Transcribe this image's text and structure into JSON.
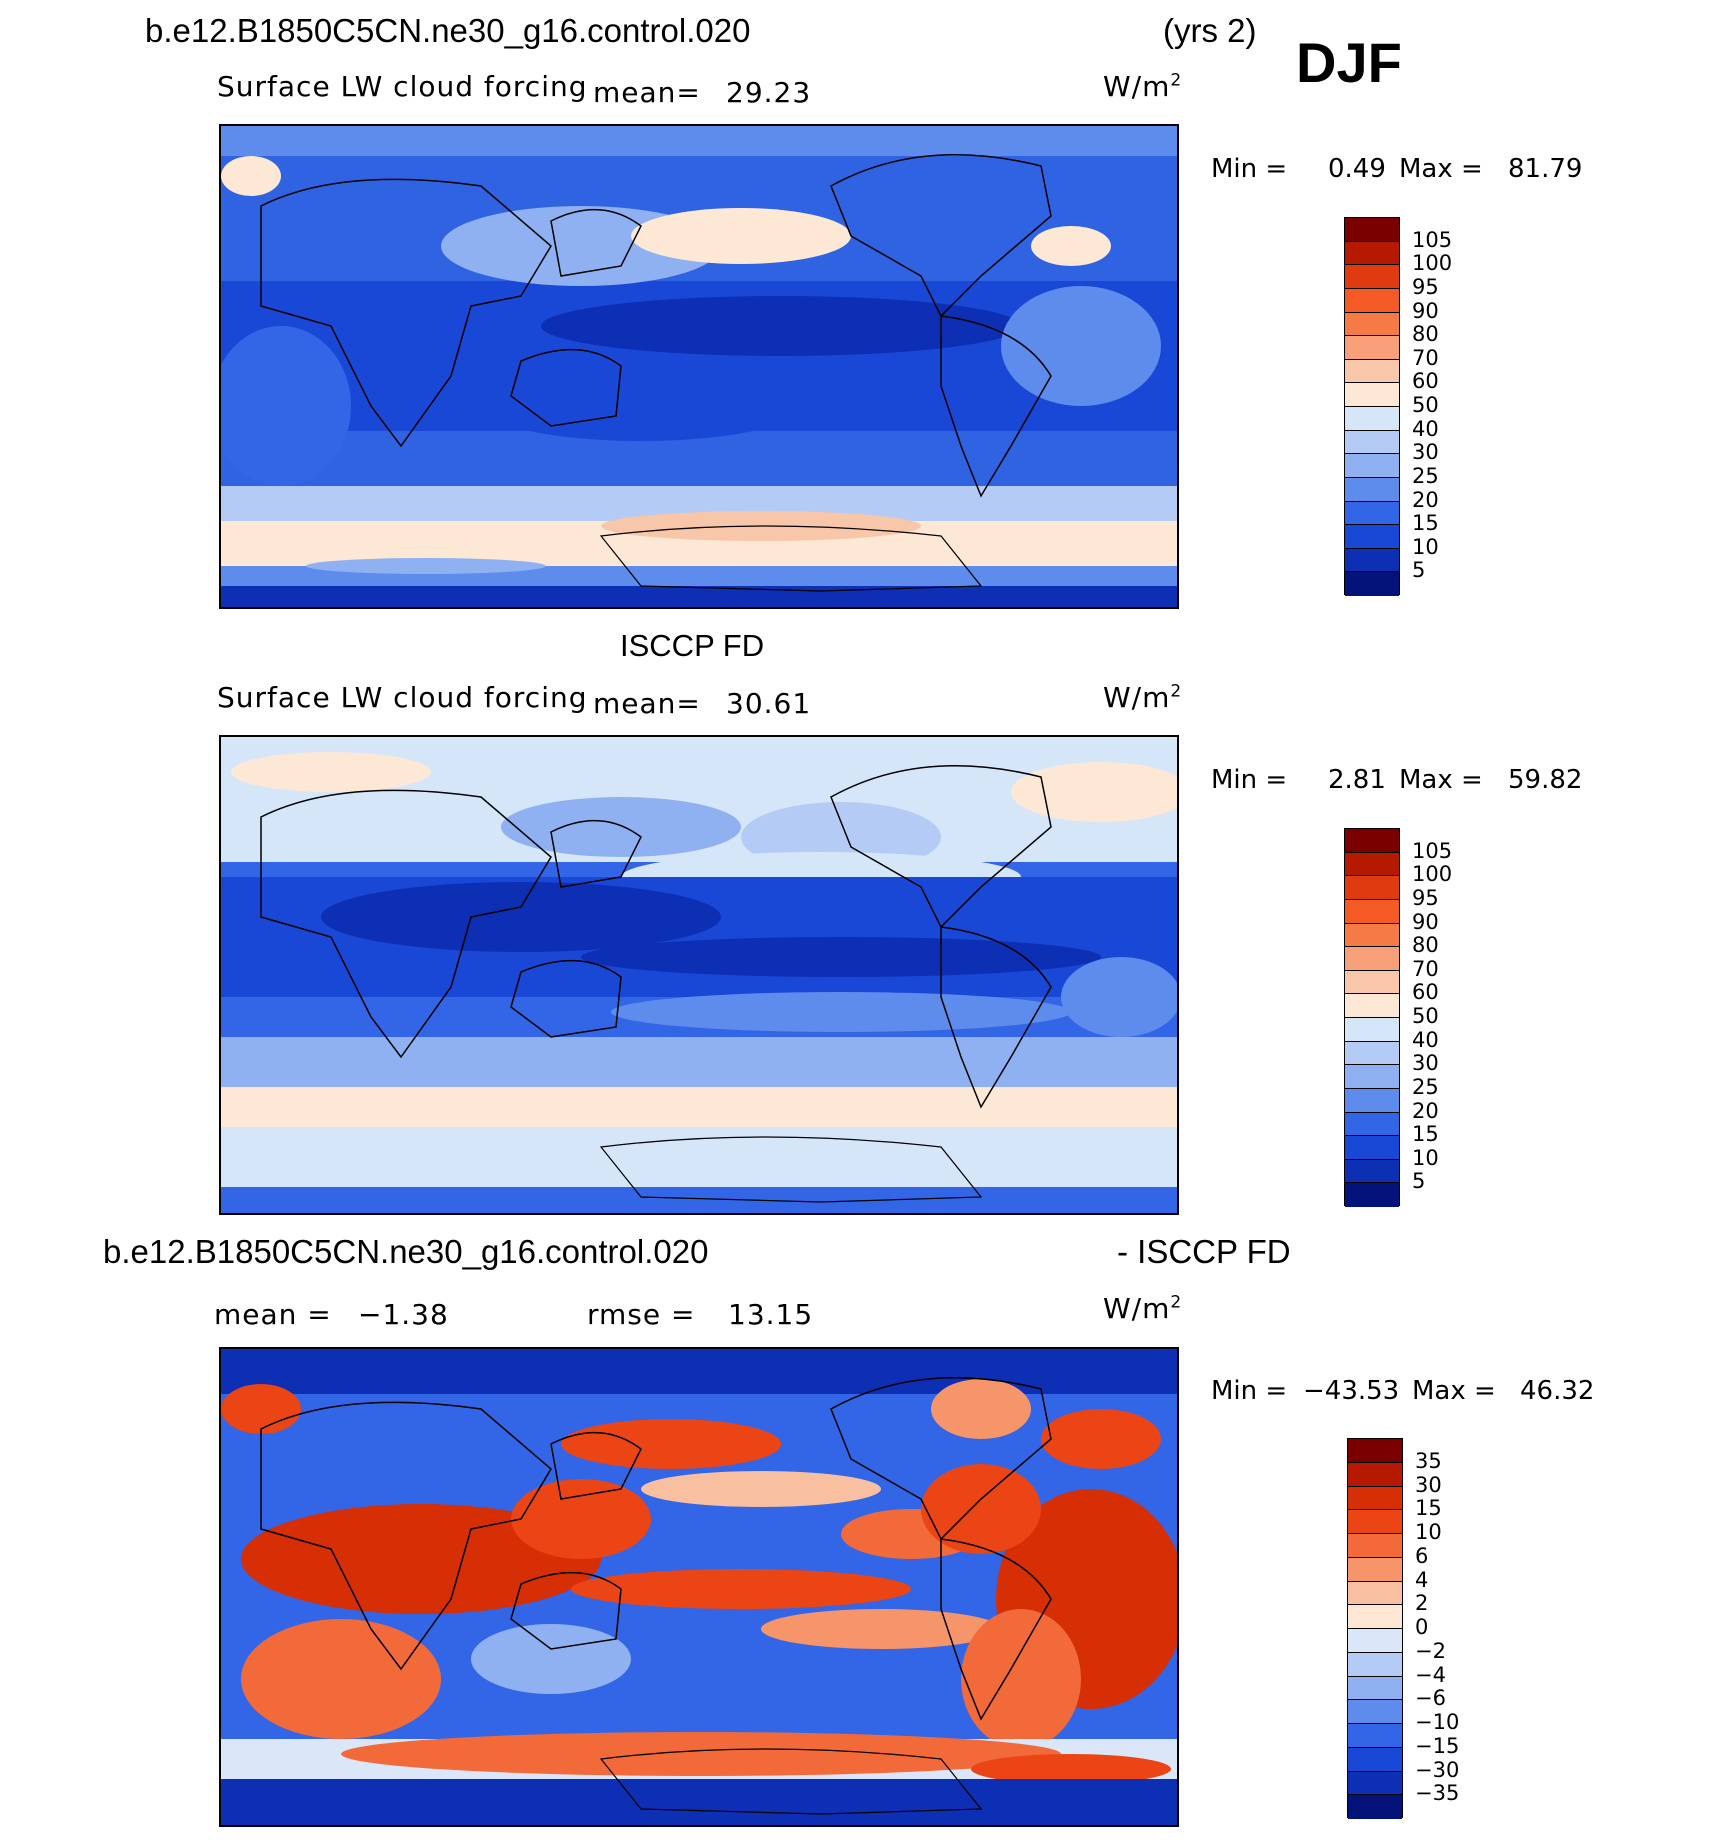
{
  "header": {
    "case_name": "b.e12.B1850C5CN.ne30_g16.control.020",
    "years": "(yrs 2)",
    "season": "DJF"
  },
  "panels": [
    {
      "title": "",
      "field": "Surface LW cloud forcing",
      "mean_label": "mean=",
      "mean_value": "29.23",
      "units": "W/m",
      "units_exp": "2",
      "min_label": "Min =",
      "min_value": "0.49",
      "max_label": "Max =",
      "max_value": "81.79",
      "colorbar_labels": [
        "105",
        "100",
        "95",
        "90",
        "80",
        "70",
        "60",
        "50",
        "40",
        "30",
        "25",
        "20",
        "15",
        "10",
        "5"
      ]
    },
    {
      "title": "ISCCP FD",
      "field": "Surface LW cloud forcing",
      "mean_label": "mean=",
      "mean_value": "30.61",
      "units": "W/m",
      "units_exp": "2",
      "min_label": "Min =",
      "min_value": "2.81",
      "max_label": "Max =",
      "max_value": "59.82",
      "colorbar_labels": [
        "105",
        "100",
        "95",
        "90",
        "80",
        "70",
        "60",
        "50",
        "40",
        "30",
        "25",
        "20",
        "15",
        "10",
        "5"
      ]
    },
    {
      "title_left": "b.e12.B1850C5CN.ne30_g16.control.020",
      "title_right": "- ISCCP FD",
      "mean_label": "mean =",
      "mean_value": "−1.38",
      "rmse_label": "rmse =",
      "rmse_value": "13.15",
      "units": "W/m",
      "units_exp": "2",
      "min_label": "Min =",
      "min_value": "−43.53",
      "max_label": "Max =",
      "max_value": "46.32",
      "colorbar_labels": [
        "35",
        "30",
        "15",
        "10",
        "6",
        "4",
        "2",
        "0",
        "−2",
        "−4",
        "−6",
        "−10",
        "−15",
        "−30",
        "−35"
      ]
    }
  ],
  "colors": {
    "abs_scale": [
      "#7a0000",
      "#b51a00",
      "#e03a10",
      "#f35a25",
      "#f67a45",
      "#f7a07a",
      "#f8c6a8",
      "#fde8d6",
      "#d6e6f9",
      "#b4ccf5",
      "#8fb1f2",
      "#5e8ced",
      "#3366e6",
      "#1a48d6",
      "#0c2fb4",
      "#03137a"
    ],
    "diff_scale": [
      "#7a0000",
      "#b51a00",
      "#d62e05",
      "#eb4415",
      "#f36a3a",
      "#f6956a",
      "#f8bfa0",
      "#fde6d4",
      "#d9e7f9",
      "#b4ccf5",
      "#8fb1f2",
      "#5e8ced",
      "#3366e6",
      "#1a48d6",
      "#0c2fb4",
      "#03137a"
    ]
  }
}
